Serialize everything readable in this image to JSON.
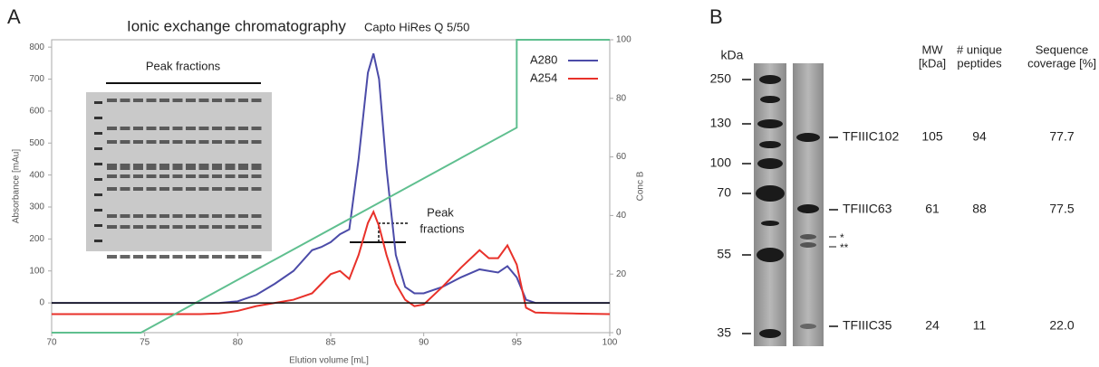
{
  "chart_data": {
    "type": "line",
    "panel_label": "A",
    "title": "Ionic exchange chromatography",
    "subtitle": "Capto HiRes Q 5/50",
    "xlabel": "Elution volume [mL]",
    "ylabel": "Absorbance [mAu]",
    "y2label": "Conc B",
    "xlim": [
      70,
      100
    ],
    "xticks": [
      70,
      75,
      80,
      85,
      90,
      95,
      100
    ],
    "ylim": [
      -93,
      823
    ],
    "yticks": [
      0,
      100,
      200,
      300,
      400,
      500,
      600,
      700,
      800
    ],
    "y2lim": [
      0,
      100
    ],
    "y2ticks": [
      0,
      20,
      40,
      60,
      80,
      100
    ],
    "legend": "top-right",
    "annotations": [
      "Peak fractions",
      "Peak",
      "fractions"
    ],
    "series": [
      {
        "name": "A280",
        "color": "#4b4ba8",
        "x": [
          70,
          72,
          74,
          76,
          78,
          79,
          80,
          81,
          82,
          83,
          84,
          84.5,
          85,
          85.5,
          86,
          86.5,
          87,
          87.3,
          87.6,
          88,
          88.5,
          89,
          89.5,
          90,
          91,
          92,
          93,
          93.5,
          94,
          94.5,
          95,
          95.5,
          96,
          97,
          98,
          100
        ],
        "values": [
          0,
          0,
          0,
          0,
          0,
          0,
          5,
          25,
          60,
          100,
          165,
          175,
          190,
          215,
          230,
          450,
          720,
          780,
          700,
          420,
          150,
          50,
          30,
          30,
          50,
          80,
          105,
          100,
          95,
          115,
          80,
          10,
          0,
          0,
          0,
          0
        ]
      },
      {
        "name": "A254",
        "color": "#e8312a",
        "x": [
          70,
          72,
          74,
          76,
          78,
          79,
          80,
          81,
          82,
          83,
          84,
          84.5,
          85,
          85.5,
          86,
          86.5,
          87,
          87.3,
          87.6,
          88,
          88.5,
          89,
          89.5,
          90,
          91,
          92,
          93,
          93.5,
          94,
          94.5,
          95,
          95.5,
          96,
          97,
          98,
          100
        ],
        "values": [
          -35,
          -35,
          -35,
          -35,
          -35,
          -33,
          -25,
          -10,
          0,
          10,
          30,
          60,
          90,
          100,
          75,
          150,
          250,
          285,
          240,
          150,
          60,
          10,
          -10,
          -5,
          50,
          110,
          165,
          140,
          140,
          180,
          120,
          -15,
          -30,
          -32,
          -33,
          -35
        ]
      },
      {
        "color": "#5fbf8f",
        "axis": "y2",
        "x": [
          70,
          74.8,
          95,
          95,
          100
        ],
        "values": [
          0,
          0,
          70,
          100,
          100
        ]
      }
    ]
  },
  "gel": {
    "panel_label": "B",
    "unit": "kDa",
    "markers": [
      250,
      130,
      100,
      70,
      55,
      35
    ],
    "headers": [
      [
        "MW",
        "[kDa]"
      ],
      [
        "# unique",
        "peptides"
      ],
      [
        "Sequence",
        "coverage [%]"
      ]
    ],
    "rows": [
      [
        "TFIIIC102",
        "105",
        "94",
        "77.7"
      ],
      [
        "TFIIIC63",
        "61",
        "88",
        "77.5"
      ],
      [
        "TFIIIC35",
        "24",
        "11",
        "22.0"
      ]
    ],
    "asterisks": [
      "*",
      "**"
    ]
  }
}
